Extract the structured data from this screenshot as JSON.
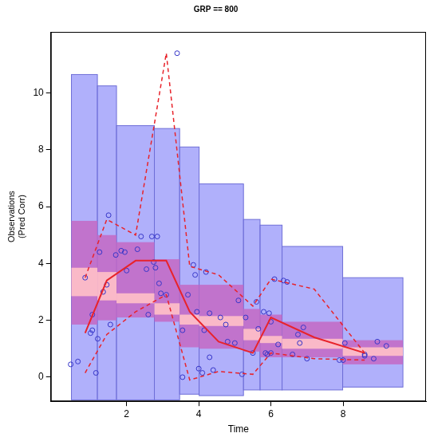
{
  "chart_data": {
    "type": "scatter",
    "title": "GRP == 800",
    "x_label": "Time",
    "y_label": [
      "Observations",
      "(Pred Corr)"
    ],
    "xlim": [
      -0.1,
      10.3
    ],
    "xticks": [
      2,
      4,
      6,
      8
    ],
    "ylim": [
      -0.85,
      12.15
    ],
    "yticks": [
      0,
      2,
      4,
      6,
      8,
      10
    ],
    "grid": false,
    "tick_labels": true,
    "bin_edges": [
      0.47,
      1.19,
      1.72,
      2.77,
      3.47,
      4.01,
      5.24,
      5.7,
      6.31,
      7.99,
      9.66
    ],
    "prediction_interval": {
      "lower": [
        -0.8,
        -0.8,
        -0.8,
        -0.8,
        -0.6,
        -0.65,
        -0.45,
        -0.45,
        -0.45,
        -0.35
      ],
      "upper": [
        10.65,
        10.25,
        8.85,
        8.75,
        8.1,
        6.8,
        5.55,
        5.35,
        4.6,
        3.5
      ]
    },
    "percentile_ci": {
      "lower": [
        1.85,
        2.0,
        2.1,
        1.95,
        1.05,
        1.0,
        0.9,
        0.7,
        0.7,
        0.45
      ],
      "upper": [
        5.5,
        5.0,
        4.75,
        4.15,
        3.25,
        3.25,
        2.4,
        2.2,
        1.95,
        1.3
      ]
    },
    "median_ci": {
      "lower": [
        2.85,
        2.7,
        2.6,
        2.2,
        1.85,
        1.8,
        1.3,
        1.2,
        1.0,
        0.75
      ],
      "upper": [
        3.85,
        3.7,
        2.95,
        2.6,
        2.2,
        2.15,
        1.7,
        1.45,
        1.35,
        1.05
      ]
    },
    "observed_percentiles": {
      "x": [
        0.85,
        1.45,
        2.25,
        3.1,
        3.75,
        4.55,
        5.5,
        6.0,
        7.2,
        8.6
      ],
      "median": [
        1.55,
        3.4,
        4.1,
        4.1,
        2.3,
        1.25,
        0.85,
        2.1,
        1.4,
        0.85
      ],
      "upper": [
        3.5,
        5.55,
        5.0,
        11.4,
        3.9,
        3.6,
        2.5,
        3.45,
        3.1,
        0.85
      ],
      "lower": [
        0.15,
        1.5,
        2.3,
        2.9,
        -0.1,
        0.2,
        0.1,
        0.85,
        0.65,
        0.6
      ]
    },
    "observations": {
      "x": [
        0.45,
        0.65,
        0.85,
        1.0,
        1.05,
        1.05,
        1.15,
        1.2,
        1.25,
        1.35,
        1.45,
        1.5,
        1.55,
        1.7,
        1.85,
        1.95,
        2.0,
        2.3,
        2.4,
        2.55,
        2.6,
        2.7,
        2.75,
        2.8,
        2.85,
        2.9,
        2.95,
        3.1,
        3.4,
        3.55,
        3.55,
        3.7,
        3.85,
        3.9,
        3.95,
        4.0,
        4.1,
        4.15,
        4.2,
        4.3,
        4.3,
        4.4,
        4.6,
        4.75,
        4.8,
        5.0,
        5.1,
        5.2,
        5.3,
        5.5,
        5.6,
        5.65,
        5.8,
        5.85,
        5.9,
        5.95,
        6.0,
        6.0,
        6.1,
        6.2,
        6.35,
        6.45,
        6.6,
        6.75,
        6.8,
        6.9,
        7.0,
        7.9,
        8.0,
        8.05,
        8.6,
        8.6,
        8.85,
        8.95,
        9.2
      ],
      "y": [
        0.45,
        0.55,
        3.5,
        1.55,
        1.65,
        2.2,
        0.15,
        1.35,
        4.4,
        3.0,
        3.25,
        5.7,
        1.85,
        4.3,
        4.45,
        4.4,
        3.75,
        4.5,
        4.95,
        3.8,
        2.2,
        4.95,
        4.05,
        3.85,
        4.95,
        3.3,
        2.95,
        2.9,
        11.4,
        1.65,
        0.0,
        2.9,
        3.95,
        3.6,
        2.3,
        0.3,
        0.15,
        1.65,
        3.7,
        2.25,
        0.7,
        0.25,
        2.1,
        1.85,
        1.25,
        1.2,
        2.7,
        0.1,
        2.1,
        0.85,
        2.65,
        1.7,
        2.3,
        0.85,
        0.8,
        2.25,
        1.95,
        0.85,
        3.45,
        1.15,
        3.4,
        3.35,
        0.8,
        1.5,
        1.2,
        1.75,
        0.65,
        0.6,
        0.6,
        1.2,
        0.8,
        0.75,
        0.65,
        1.25,
        1.1
      ]
    }
  }
}
